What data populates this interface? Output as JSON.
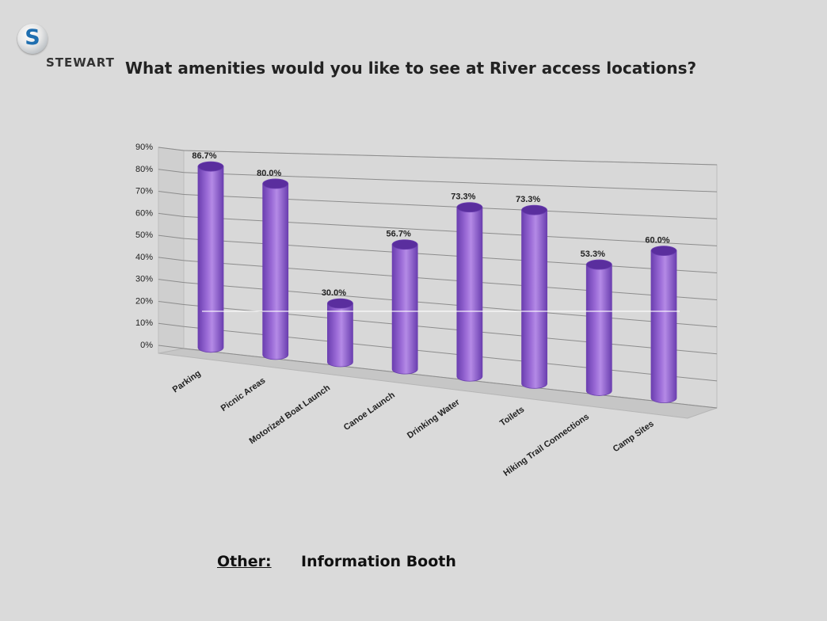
{
  "logo": {
    "letter": "S",
    "word": "STEWART"
  },
  "title": "What amenities would you like to see at River access locations?",
  "other": {
    "label": "Other:",
    "value": "Information Booth"
  },
  "colors": {
    "bar": "#9a6ad6",
    "bar_dark": "#6b3fb0",
    "bar_top": "#5a2e9e",
    "background": "#dadada"
  },
  "chart_data": {
    "type": "bar",
    "style": "3d-cylinder",
    "categories": [
      "Parking",
      "Picnic Areas",
      "Motorized Boat Launch",
      "Canoe Launch",
      "Drinking Water",
      "Toilets",
      "Hiking Trail Connections",
      "Camp Sites"
    ],
    "values": [
      86.7,
      80.0,
      30.0,
      56.7,
      73.3,
      73.3,
      53.3,
      60.0
    ],
    "data_labels": [
      "86.7%",
      "80.0%",
      "30.0%",
      "56.7%",
      "73.3%",
      "73.3%",
      "53.3%",
      "60.0%"
    ],
    "ylim": [
      0,
      90
    ],
    "y_ticks": [
      0,
      10,
      20,
      30,
      40,
      50,
      60,
      70,
      80,
      90
    ],
    "y_tick_labels": [
      "0%",
      "10%",
      "20%",
      "30%",
      "40%",
      "50%",
      "60%",
      "70%",
      "80%",
      "90%"
    ],
    "grid": true,
    "legend": "none"
  }
}
